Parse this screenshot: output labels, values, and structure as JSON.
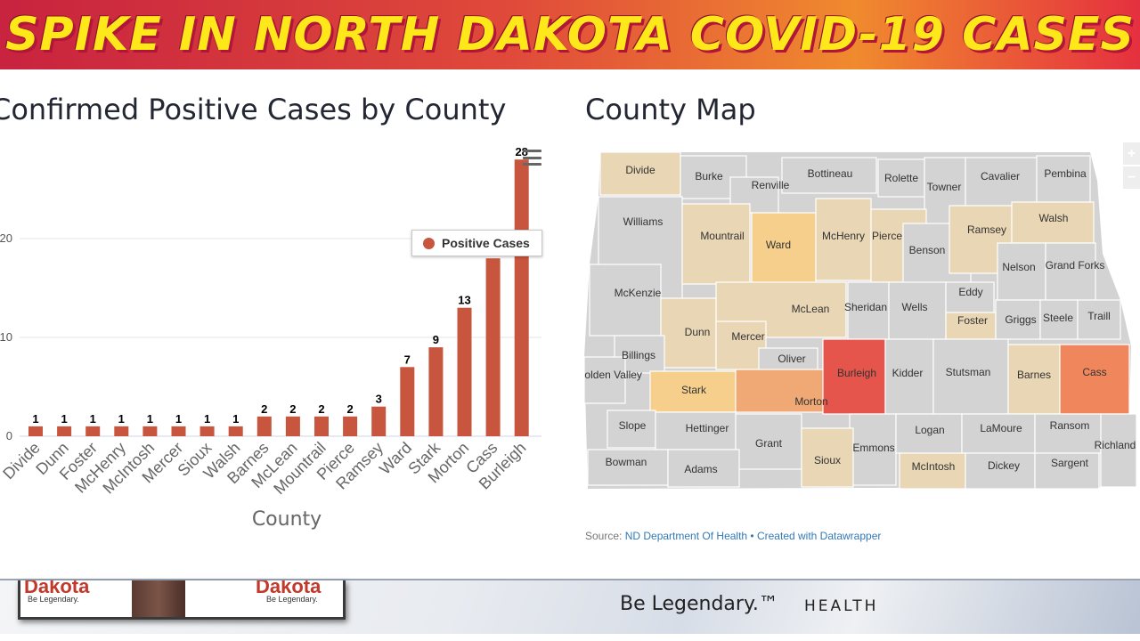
{
  "banner": {
    "title": "SPIKE IN NORTH DAKOTA COVID-19 CASES"
  },
  "chart_panel": {
    "title": "Confirmed Positive Cases by County"
  },
  "map_panel": {
    "title": "County Map",
    "source_prefix": "Source: ",
    "source_link": "ND Department Of Health",
    "separator": " • ",
    "created_with": "Created with Datawrapper",
    "zoom_in": "+",
    "zoom_out": "−"
  },
  "colors": {
    "bar": "#c8553d",
    "map_none": "#d3d3d3",
    "map_1": "#e9d6b4",
    "map_2": "#f6cf8c",
    "map_3": "#f0a875",
    "map_4": "#f0875c",
    "map_5": "#e5554b"
  },
  "chart_data": {
    "type": "bar",
    "categories": [
      "Divide",
      "Dunn",
      "Foster",
      "McHenry",
      "McIntosh",
      "Mercer",
      "Sioux",
      "Walsh",
      "Barnes",
      "McLean",
      "Mountrail",
      "Pierce",
      "Ramsey",
      "Ward",
      "Stark",
      "Morton",
      "Cass",
      "Burleigh"
    ],
    "series": [
      {
        "name": "Positive Cases",
        "values": [
          1,
          1,
          1,
          1,
          1,
          1,
          1,
          1,
          2,
          2,
          2,
          2,
          3,
          7,
          9,
          13,
          18,
          28
        ]
      }
    ],
    "data_labels": [
      "1",
      "1",
      "1",
      "1",
      "1",
      "1",
      "1",
      "1",
      "2",
      "2",
      "2",
      "2",
      "3",
      "7",
      "9",
      "13",
      "",
      "28"
    ],
    "xlabel": "County",
    "ylabel": "",
    "y_ticks": [
      "0",
      "10",
      "20"
    ],
    "ylim": [
      0,
      28
    ],
    "grid": true,
    "legend": "top-right"
  },
  "map_counties": [
    "Divide",
    "Burke",
    "Renville",
    "Bottineau",
    "Rolette",
    "Towner",
    "Cavalier",
    "Pembina",
    "Williams",
    "Mountrail",
    "Ward",
    "McHenry",
    "Pierce",
    "Benson",
    "Ramsey",
    "Walsh",
    "Nelson",
    "Grand Forks",
    "McKenzie",
    "McLean",
    "Sheridan",
    "Wells",
    "Eddy",
    "Foster",
    "Griggs",
    "Steele",
    "Traill",
    "Dunn",
    "Mercer",
    "Billings",
    "Oliver",
    "Golden Valley",
    "Stark",
    "Morton",
    "Burleigh",
    "Kidder",
    "Stutsman",
    "Barnes",
    "Cass",
    "Slope",
    "Hettinger",
    "Grant",
    "Emmons",
    "Logan",
    "LaMoure",
    "Ransom",
    "Richland",
    "Bowman",
    "Adams",
    "Sioux",
    "McIntosh",
    "Dickey",
    "Sargent"
  ],
  "footer": {
    "inset_logo": "Dakota",
    "inset_text_1": "Be Legendary.",
    "inset_text_2": "Be Legendary.",
    "slogan": "Be Legendary.™",
    "health": "HEALTH"
  }
}
